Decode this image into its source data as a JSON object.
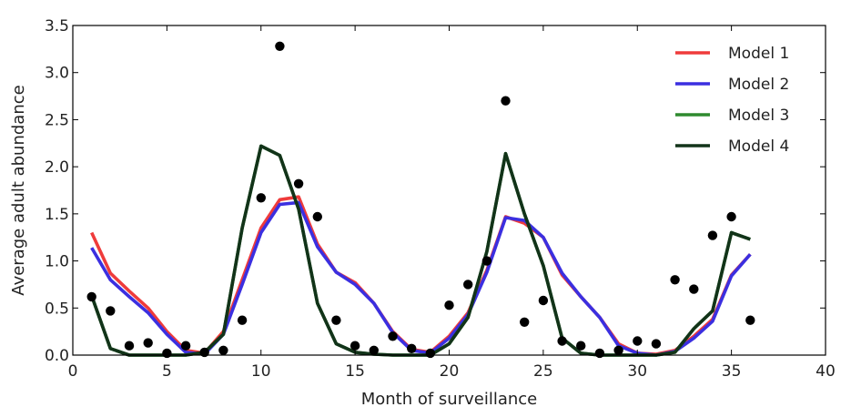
{
  "chart_data": {
    "type": "line",
    "title": "",
    "xlabel": "Month of surveillance",
    "ylabel": "Average adult abundance",
    "xlim": [
      0,
      40
    ],
    "ylim": [
      0,
      3.5
    ],
    "xticks": [
      0,
      5,
      10,
      15,
      20,
      25,
      30,
      35,
      40
    ],
    "yticks": [
      0.0,
      0.5,
      1.0,
      1.5,
      2.0,
      2.5,
      3.0,
      3.5
    ],
    "xtick_labels": [
      "0",
      "5",
      "10",
      "15",
      "20",
      "25",
      "30",
      "35",
      "40"
    ],
    "ytick_labels": [
      "0.0",
      "0.5",
      "1.0",
      "1.5",
      "2.0",
      "2.5",
      "3.0",
      "3.5"
    ],
    "grid": false,
    "legend_position": "top-right",
    "x": [
      1,
      2,
      3,
      4,
      5,
      6,
      7,
      8,
      9,
      10,
      11,
      12,
      13,
      14,
      15,
      16,
      17,
      18,
      19,
      20,
      21,
      22,
      23,
      24,
      25,
      26,
      27,
      28,
      29,
      30,
      31,
      32,
      33,
      34,
      35,
      36
    ],
    "series": [
      {
        "name": "Model 1",
        "color": "#ef3b3b",
        "values": [
          1.3,
          0.87,
          0.68,
          0.5,
          0.25,
          0.05,
          0.02,
          0.25,
          0.8,
          1.35,
          1.65,
          1.68,
          1.18,
          0.88,
          0.77,
          0.55,
          0.25,
          0.06,
          0.03,
          0.2,
          0.45,
          0.9,
          1.47,
          1.4,
          1.25,
          0.85,
          0.62,
          0.4,
          0.12,
          0.02,
          0.01,
          0.05,
          0.2,
          0.38,
          0.85,
          1.07
        ]
      },
      {
        "name": "Model 2",
        "color": "#3b2fe0",
        "values": [
          1.14,
          0.8,
          0.62,
          0.45,
          0.22,
          0.03,
          0.01,
          0.22,
          0.75,
          1.3,
          1.6,
          1.62,
          1.15,
          0.88,
          0.75,
          0.55,
          0.24,
          0.05,
          0.02,
          0.18,
          0.43,
          0.88,
          1.46,
          1.43,
          1.25,
          0.87,
          0.62,
          0.4,
          0.1,
          0.02,
          0.0,
          0.04,
          0.18,
          0.36,
          0.84,
          1.07
        ]
      },
      {
        "name": "Model 3",
        "color": "#2f8a2f",
        "values": [
          0.63,
          0.07,
          0.0,
          0.0,
          0.0,
          0.0,
          0.03,
          0.22,
          1.35,
          2.22,
          2.12,
          1.55,
          0.55,
          0.12,
          0.03,
          0.01,
          0.0,
          0.0,
          0.0,
          0.12,
          0.4,
          1.1,
          2.14,
          1.5,
          0.95,
          0.18,
          0.02,
          0.0,
          0.0,
          0.0,
          0.0,
          0.03,
          0.28,
          0.47,
          1.3,
          1.23
        ]
      },
      {
        "name": "Model 4",
        "color": "#123319",
        "values": [
          0.63,
          0.07,
          0.0,
          0.0,
          0.0,
          0.0,
          0.03,
          0.22,
          1.35,
          2.22,
          2.12,
          1.55,
          0.55,
          0.12,
          0.03,
          0.01,
          0.0,
          0.0,
          0.0,
          0.12,
          0.4,
          1.1,
          2.14,
          1.5,
          0.95,
          0.18,
          0.02,
          0.0,
          0.0,
          0.0,
          0.0,
          0.03,
          0.28,
          0.47,
          1.3,
          1.23
        ]
      }
    ],
    "observed_points": {
      "color": "#000000",
      "points": [
        [
          1,
          0.62
        ],
        [
          2,
          0.47
        ],
        [
          3,
          0.1
        ],
        [
          4,
          0.13
        ],
        [
          5,
          0.02
        ],
        [
          6,
          0.1
        ],
        [
          7,
          0.03
        ],
        [
          8,
          0.05
        ],
        [
          9,
          0.37
        ],
        [
          10,
          1.67
        ],
        [
          11,
          3.28
        ],
        [
          12,
          1.82
        ],
        [
          13,
          1.47
        ],
        [
          14,
          0.37
        ],
        [
          15,
          0.1
        ],
        [
          16,
          0.05
        ],
        [
          17,
          0.2
        ],
        [
          18,
          0.07
        ],
        [
          19,
          0.02
        ],
        [
          20,
          0.53
        ],
        [
          21,
          0.75
        ],
        [
          22,
          1.0
        ],
        [
          23,
          2.7
        ],
        [
          24,
          0.35
        ],
        [
          25,
          0.58
        ],
        [
          26,
          0.15
        ],
        [
          27,
          0.1
        ],
        [
          28,
          0.02
        ],
        [
          29,
          0.05
        ],
        [
          30,
          0.15
        ],
        [
          31,
          0.12
        ],
        [
          32,
          0.8
        ],
        [
          33,
          0.7
        ],
        [
          34,
          1.27
        ],
        [
          35,
          1.47
        ],
        [
          36,
          0.37
        ]
      ]
    }
  }
}
